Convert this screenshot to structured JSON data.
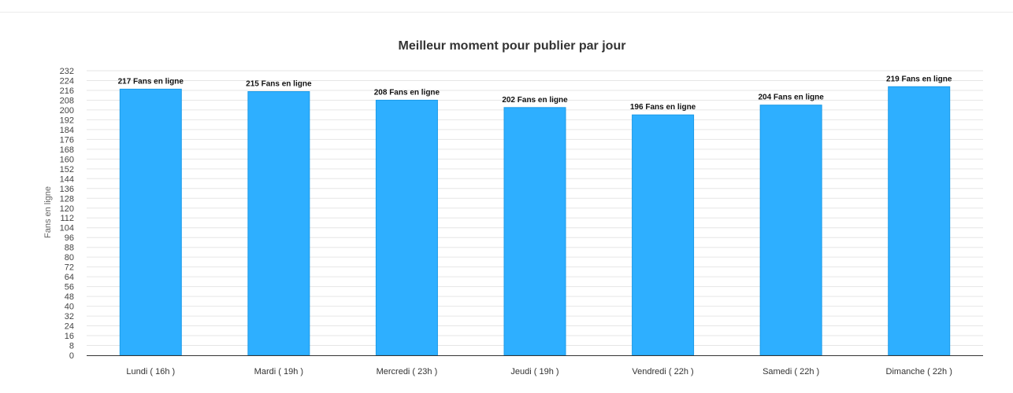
{
  "chart_data": {
    "type": "bar",
    "title": "Meilleur moment pour publier par jour",
    "xlabel": "",
    "ylabel": "Fans en ligne",
    "ylim": [
      0,
      232
    ],
    "ytick_step": 8,
    "grid": true,
    "legend": "none",
    "bar_color": "#2eafff",
    "categories": [
      "Lundi ( 16h )",
      "Mardi ( 19h )",
      "Mercredi ( 23h )",
      "Jeudi ( 19h )",
      "Vendredi ( 22h )",
      "Samedi ( 22h )",
      "Dimanche ( 22h )"
    ],
    "values": [
      217,
      215,
      208,
      202,
      196,
      204,
      219
    ],
    "data_labels": [
      "217 Fans en ligne",
      "215 Fans en ligne",
      "208 Fans en ligne",
      "202 Fans en ligne",
      "196 Fans en ligne",
      "204 Fans en ligne",
      "219 Fans en ligne"
    ]
  }
}
